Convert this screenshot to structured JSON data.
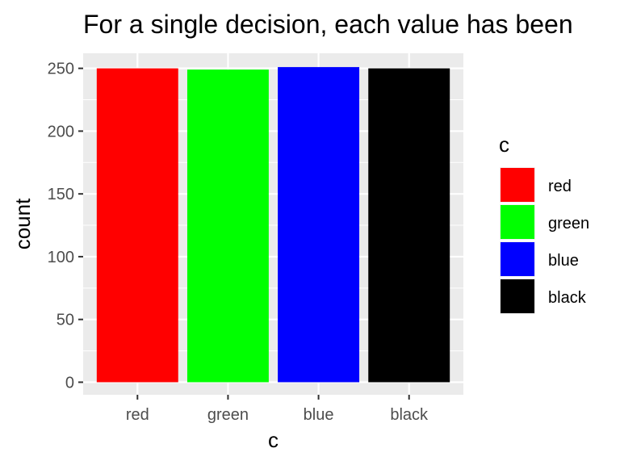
{
  "chart_data": {
    "type": "bar",
    "title": "For a single decision, each value has been",
    "xlabel": "c",
    "ylabel": "count",
    "categories": [
      "red",
      "green",
      "blue",
      "black"
    ],
    "values": [
      250,
      249,
      251,
      250
    ],
    "colors": [
      "#ff0000",
      "#00ff00",
      "#0000ff",
      "#000000"
    ],
    "ylim": [
      -10,
      262
    ],
    "yticks": [
      0,
      50,
      100,
      150,
      200,
      250
    ],
    "grid": true,
    "panel_background": "#ebebeb",
    "grid_color": "#ffffff",
    "legend": {
      "title": "c",
      "placement": "right",
      "entries": [
        "red",
        "green",
        "blue",
        "black"
      ]
    }
  }
}
